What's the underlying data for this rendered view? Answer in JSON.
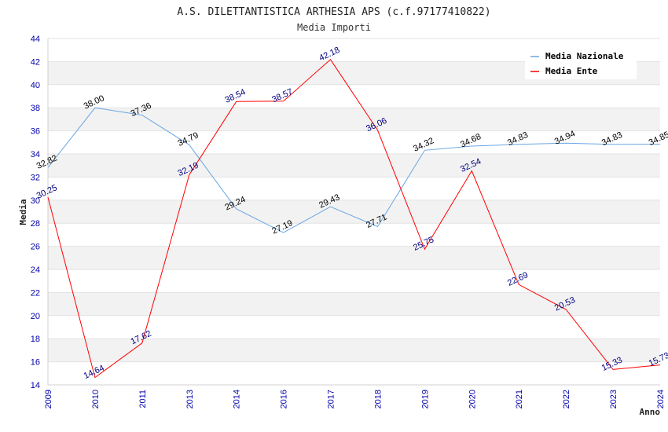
{
  "chart_data": {
    "type": "line",
    "title": "A.S. DILETTANTISTICA ARTHESIA APS (c.f.97177410822)",
    "subtitle": "Media Importi",
    "xlabel": "Anno",
    "ylabel": "Media",
    "ylim": [
      14,
      44
    ],
    "yticks": [
      "14",
      "16",
      "18",
      "20",
      "22",
      "24",
      "26",
      "28",
      "30",
      "32",
      "34",
      "36",
      "38",
      "40",
      "42",
      "44"
    ],
    "categories": [
      "2009",
      "2010",
      "2011",
      "2013",
      "2014",
      "2016",
      "2017",
      "2018",
      "2019",
      "2020",
      "2021",
      "2022",
      "2023",
      "2024"
    ],
    "grid": "horizontal bands",
    "legend_position": "top-right",
    "series": [
      {
        "name": "Media Nazionale",
        "color": "#6aa6e2",
        "values": [
          32.82,
          38.0,
          37.36,
          34.79,
          29.24,
          27.19,
          29.43,
          27.71,
          34.32,
          34.68,
          34.83,
          34.94,
          34.83,
          34.85
        ],
        "labels": [
          "32.82",
          "38.00",
          "37.36",
          "34.79",
          "29.24",
          "27.19",
          "29.43",
          "27.71",
          "34.32",
          "34.68",
          "34.83",
          "34.94",
          "34.83",
          "34.85"
        ]
      },
      {
        "name": "Media Ente",
        "color": "#ff0000",
        "values": [
          30.25,
          14.64,
          17.62,
          32.19,
          38.54,
          38.57,
          42.18,
          36.06,
          25.75,
          32.54,
          22.69,
          20.53,
          15.33,
          15.73
        ],
        "labels": [
          "30.25",
          "14.64",
          "17.62",
          "32.19",
          "38.54",
          "38.57",
          "42.18",
          "36.06",
          "25.75",
          "32.54",
          "22.69",
          "20.53",
          "15.33",
          "15.73"
        ]
      }
    ]
  }
}
